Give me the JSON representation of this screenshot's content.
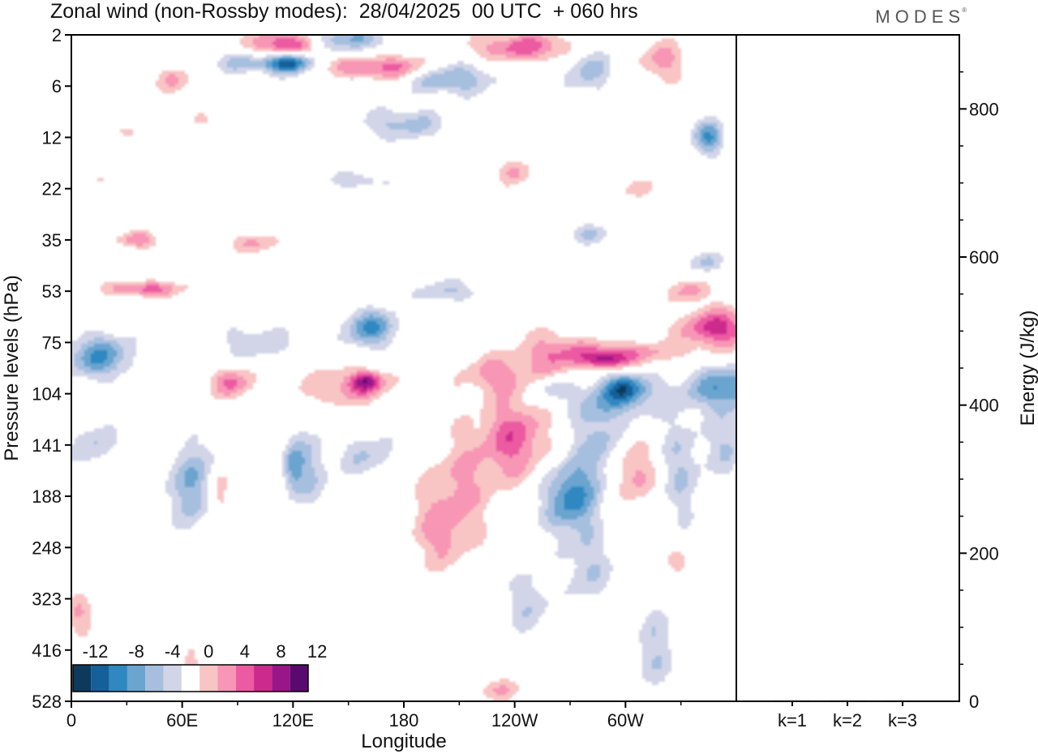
{
  "header": {
    "title": "Zonal wind (non-Rossby modes):  28/04/2025  00 UTC  + 060 hrs",
    "brand": "MODES",
    "brand_mark": "®"
  },
  "colors": {
    "neg": [
      "#0d3a5c",
      "#15609a",
      "#2f88c2",
      "#6aa4cf",
      "#a6bfdf",
      "#d2d5e8"
    ],
    "zero": "#ffffff",
    "pos": [
      "#f9c4c4",
      "#f796b5",
      "#ec5ba2",
      "#cc2a8c",
      "#98158a",
      "#5a0a6e"
    ]
  },
  "chart_data": [
    {
      "type": "heatmap",
      "title": "Zonal wind (non-Rossby modes):  28/04/2025  00 UTC  + 060 hrs",
      "xlabel": "Longitude",
      "ylabel": "Pressure levels (hPa)",
      "x_ticks": [
        "0",
        "60E",
        "120E",
        "180",
        "120W",
        "60W"
      ],
      "y_ticks": [
        "2",
        "6",
        "12",
        "22",
        "35",
        "53",
        "75",
        "104",
        "141",
        "188",
        "248",
        "323",
        "416",
        "528"
      ],
      "colorbar": {
        "labels": [
          "-12",
          "-8",
          "-4",
          "0",
          "4",
          "8",
          "12"
        ],
        "bins": [
          -14,
          -12,
          -10,
          -8,
          -6,
          -4,
          -2,
          2,
          4,
          6,
          8,
          10,
          12,
          14
        ]
      },
      "blobs": [
        {
          "lon": 115,
          "lev": 2.5,
          "rx": 18,
          "ry": 0.9,
          "v": 9
        },
        {
          "lon": 150,
          "lev": 2.2,
          "rx": 22,
          "ry": 0.7,
          "v": -6
        },
        {
          "lon": 118,
          "lev": 3.6,
          "rx": 12,
          "ry": 0.9,
          "v": -13
        },
        {
          "lon": 95,
          "lev": 3.6,
          "rx": 18,
          "ry": 1.0,
          "v": -5
        },
        {
          "lon": 170,
          "lev": 4.0,
          "rx": 30,
          "ry": 1.2,
          "v": 7
        },
        {
          "lon": 205,
          "lev": 5.0,
          "rx": 22,
          "ry": 1.6,
          "v": -7
        },
        {
          "lon": 245,
          "lev": 2.6,
          "rx": 28,
          "ry": 0.9,
          "v": 7
        },
        {
          "lon": 280,
          "lev": 4.2,
          "rx": 12,
          "ry": 2.5,
          "v": -5
        },
        {
          "lon": 320,
          "lev": 3.5,
          "rx": 12,
          "ry": 1.8,
          "v": 5
        },
        {
          "lon": 180,
          "lev": 10,
          "rx": 22,
          "ry": 2.2,
          "v": -5
        },
        {
          "lon": 56,
          "lev": 5.3,
          "rx": 10,
          "ry": 1.3,
          "v": 4
        },
        {
          "lon": 30,
          "lev": 11,
          "rx": 6,
          "ry": 0.8,
          "v": 3
        },
        {
          "lon": 20,
          "lev": 20,
          "rx": 10,
          "ry": 0.8,
          "v": 3
        },
        {
          "lon": 345,
          "lev": 12,
          "rx": 8,
          "ry": 2.6,
          "v": -8
        },
        {
          "lon": 240,
          "lev": 18,
          "rx": 10,
          "ry": 3.0,
          "v": 4
        },
        {
          "lon": 155,
          "lev": 20,
          "rx": 15,
          "ry": 2.0,
          "v": -4
        },
        {
          "lon": 305,
          "lev": 22,
          "rx": 10,
          "ry": 2.0,
          "v": 3
        },
        {
          "lon": 70,
          "lev": 9.5,
          "rx": 8,
          "ry": 1.5,
          "v": 3
        },
        {
          "lon": 36,
          "lev": 35,
          "rx": 10,
          "ry": 2.5,
          "v": 6
        },
        {
          "lon": 100,
          "lev": 36,
          "rx": 14,
          "ry": 3.0,
          "v": 4
        },
        {
          "lon": 280,
          "lev": 33,
          "rx": 12,
          "ry": 3.0,
          "v": -4
        },
        {
          "lon": 345,
          "lev": 42,
          "rx": 8,
          "ry": 4.0,
          "v": -5
        },
        {
          "lon": 40,
          "lev": 52,
          "rx": 20,
          "ry": 3.0,
          "v": 7
        },
        {
          "lon": 335,
          "lev": 53,
          "rx": 10,
          "ry": 4.0,
          "v": 5
        },
        {
          "lon": 350,
          "lev": 68,
          "rx": 20,
          "ry": 9.0,
          "v": 9
        },
        {
          "lon": 15,
          "lev": 82,
          "rx": 18,
          "ry": 12,
          "v": -8
        },
        {
          "lon": 100,
          "lev": 75,
          "rx": 20,
          "ry": 8.0,
          "v": -4
        },
        {
          "lon": 162,
          "lev": 68,
          "rx": 15,
          "ry": 9.0,
          "v": -8
        },
        {
          "lon": 205,
          "lev": 53,
          "rx": 18,
          "ry": 4.0,
          "v": -4
        },
        {
          "lon": 300,
          "lev": 80,
          "rx": 35,
          "ry": 6.0,
          "v": 5
        },
        {
          "lon": 290,
          "lev": 84,
          "rx": 12,
          "ry": 5.0,
          "v": 8
        },
        {
          "lon": 262,
          "lev": 82,
          "rx": 18,
          "ry": 15,
          "v": 5
        },
        {
          "lon": 230,
          "lev": 92,
          "rx": 18,
          "ry": 12,
          "v": 5
        },
        {
          "lon": 150,
          "lev": 100,
          "rx": 25,
          "ry": 12,
          "v": 5
        },
        {
          "lon": 160,
          "lev": 96,
          "rx": 8,
          "ry": 6.0,
          "v": 8
        },
        {
          "lon": 87,
          "lev": 97,
          "rx": 12,
          "ry": 10,
          "v": 6
        },
        {
          "lon": 260,
          "lev": 100,
          "rx": 12,
          "ry": 8.0,
          "v": -4
        },
        {
          "lon": 295,
          "lev": 108,
          "rx": 25,
          "ry": 14,
          "v": -5
        },
        {
          "lon": 300,
          "lev": 100,
          "rx": 12,
          "ry": 9.0,
          "v": -8
        },
        {
          "lon": 355,
          "lev": 100,
          "rx": 22,
          "ry": 14,
          "v": -8
        },
        {
          "lon": 240,
          "lev": 135,
          "rx": 18,
          "ry": 34,
          "v": 7
        },
        {
          "lon": 210,
          "lev": 175,
          "rx": 20,
          "ry": 55,
          "v": 4
        },
        {
          "lon": 200,
          "lev": 230,
          "rx": 16,
          "ry": 50,
          "v": 4
        },
        {
          "lon": 270,
          "lev": 190,
          "rx": 14,
          "ry": 40,
          "v": -9
        },
        {
          "lon": 285,
          "lev": 140,
          "rx": 12,
          "ry": 35,
          "v": -5
        },
        {
          "lon": 305,
          "lev": 165,
          "rx": 12,
          "ry": 30,
          "v": 5
        },
        {
          "lon": 330,
          "lev": 160,
          "rx": 12,
          "ry": 55,
          "v": -4
        },
        {
          "lon": 355,
          "lev": 140,
          "rx": 10,
          "ry": 30,
          "v": -4
        },
        {
          "lon": 65,
          "lev": 175,
          "rx": 10,
          "ry": 45,
          "v": -7
        },
        {
          "lon": 80,
          "lev": 185,
          "rx": 6,
          "ry": 25,
          "v": 4
        },
        {
          "lon": 12,
          "lev": 140,
          "rx": 12,
          "ry": 20,
          "v": -4
        },
        {
          "lon": 130,
          "lev": 160,
          "rx": 10,
          "ry": 40,
          "v": -4
        },
        {
          "lon": 120,
          "lev": 160,
          "rx": 6,
          "ry": 25,
          "v": -6
        },
        {
          "lon": 160,
          "lev": 150,
          "rx": 14,
          "ry": 20,
          "v": -4
        },
        {
          "lon": 280,
          "lev": 280,
          "rx": 12,
          "ry": 60,
          "v": -4
        },
        {
          "lon": 248,
          "lev": 330,
          "rx": 10,
          "ry": 60,
          "v": -4
        },
        {
          "lon": 315,
          "lev": 420,
          "rx": 10,
          "ry": 100,
          "v": -4
        },
        {
          "lon": 5,
          "lev": 350,
          "rx": 8,
          "ry": 35,
          "v": 4
        },
        {
          "lon": 230,
          "lev": 500,
          "rx": 12,
          "ry": 30,
          "v": 4
        },
        {
          "lon": 65,
          "lev": 440,
          "rx": 4,
          "ry": 80,
          "v": 3
        },
        {
          "lon": 330,
          "lev": 270,
          "rx": 8,
          "ry": 25,
          "v": 3
        }
      ]
    },
    {
      "type": "bar",
      "categories": [
        "k=1",
        "k=2",
        "k=3"
      ],
      "values": [
        1.2,
        0.9,
        0.8
      ],
      "ylabel": "Energy (J/kg)",
      "ylim": [
        0,
        900
      ],
      "y_ticks": [
        0,
        200,
        400,
        600,
        800
      ]
    }
  ]
}
